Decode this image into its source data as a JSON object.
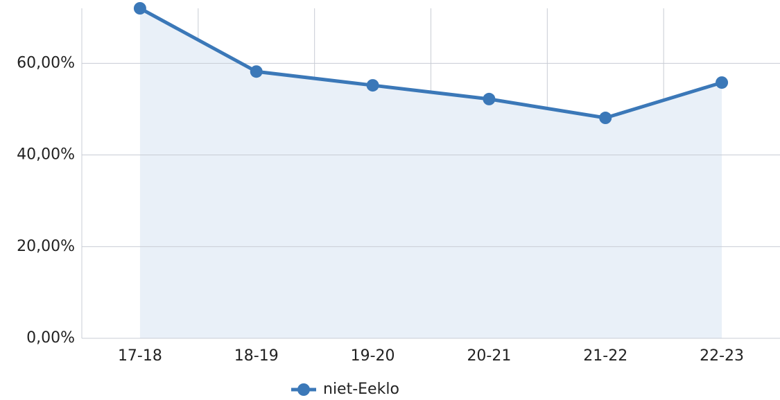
{
  "chart_data": {
    "type": "line",
    "categories": [
      "17-18",
      "18-19",
      "19-20",
      "20-21",
      "21-22",
      "22-23"
    ],
    "series": [
      {
        "name": "niet-Eeklo",
        "color": "#3b78b8",
        "values": [
          72.0,
          58.2,
          55.2,
          52.2,
          48.1,
          55.8
        ]
      }
    ],
    "area": true,
    "ylim": [
      0,
      72
    ],
    "yticks": [
      {
        "value": 0,
        "label": "0,00%"
      },
      {
        "value": 20,
        "label": "20,00%"
      },
      {
        "value": 40,
        "label": "40,00%"
      },
      {
        "value": 60,
        "label": "60,00%"
      }
    ],
    "grid": true,
    "legend": "bottom"
  }
}
